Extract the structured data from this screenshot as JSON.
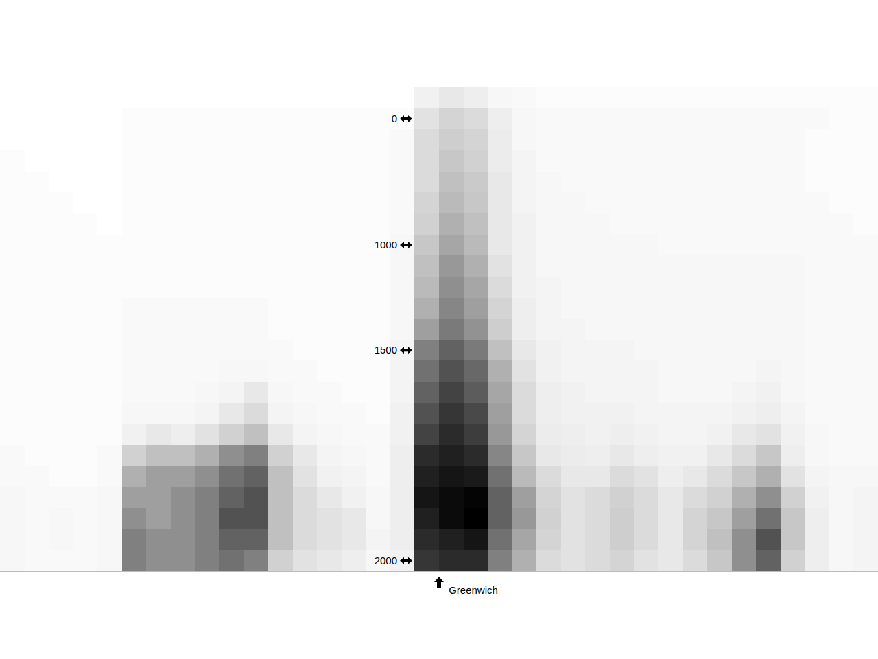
{
  "chart_data": {
    "type": "heatmap",
    "x": [
      -175,
      -165,
      -155,
      -145,
      -135,
      -125,
      -115,
      -105,
      -95,
      -85,
      -75,
      -65,
      -55,
      -45,
      -35,
      -25,
      -15,
      -5,
      5,
      15,
      25,
      35,
      45,
      55,
      65,
      75,
      85,
      95,
      105,
      115,
      125,
      135,
      145,
      155,
      165,
      175
    ],
    "categories": [
      null,
      "0",
      null,
      null,
      null,
      null,
      null,
      "1000",
      null,
      null,
      null,
      null,
      "1500",
      null,
      null,
      null,
      null,
      null,
      null,
      null,
      null,
      null,
      "2000"
    ],
    "cells": [
      [
        0,
        0,
        0,
        0,
        0,
        0,
        0,
        0,
        0,
        0,
        0,
        0,
        0,
        0,
        0,
        0,
        0,
        5,
        8,
        6,
        3,
        2,
        1,
        1,
        1,
        1,
        1,
        1,
        1,
        1,
        1,
        1,
        1,
        1,
        1,
        1
      ],
      [
        0,
        0,
        0,
        0,
        0,
        1,
        1,
        1,
        1,
        1,
        1,
        1,
        1,
        1,
        1,
        1,
        1,
        10,
        14,
        12,
        6,
        3,
        2,
        2,
        2,
        2,
        2,
        2,
        2,
        2,
        2,
        2,
        2,
        2,
        1,
        1
      ],
      [
        0,
        0,
        0,
        0,
        0,
        1,
        1,
        1,
        1,
        1,
        1,
        1,
        1,
        1,
        1,
        1,
        2,
        12,
        16,
        14,
        7,
        3,
        2,
        2,
        2,
        2,
        2,
        2,
        2,
        2,
        2,
        2,
        2,
        1,
        1,
        1
      ],
      [
        1,
        0,
        0,
        0,
        0,
        1,
        1,
        1,
        1,
        1,
        1,
        1,
        1,
        1,
        1,
        1,
        2,
        12,
        18,
        15,
        7,
        4,
        2,
        2,
        2,
        2,
        2,
        2,
        2,
        2,
        2,
        2,
        2,
        1,
        1,
        1
      ],
      [
        1,
        1,
        0,
        0,
        0,
        1,
        1,
        1,
        1,
        1,
        1,
        1,
        1,
        1,
        1,
        1,
        2,
        12,
        20,
        17,
        8,
        4,
        3,
        2,
        2,
        2,
        2,
        2,
        2,
        2,
        2,
        2,
        2,
        1,
        1,
        1
      ],
      [
        1,
        1,
        1,
        0,
        0,
        1,
        1,
        1,
        1,
        1,
        1,
        1,
        1,
        1,
        1,
        1,
        2,
        14,
        22,
        18,
        8,
        4,
        3,
        3,
        2,
        2,
        2,
        2,
        2,
        2,
        2,
        2,
        2,
        2,
        1,
        1
      ],
      [
        1,
        1,
        1,
        1,
        0,
        1,
        1,
        1,
        1,
        1,
        1,
        1,
        1,
        1,
        1,
        1,
        2,
        15,
        25,
        20,
        8,
        5,
        3,
        3,
        3,
        2,
        2,
        2,
        2,
        2,
        2,
        2,
        2,
        2,
        2,
        1
      ],
      [
        1,
        1,
        1,
        1,
        1,
        1,
        1,
        1,
        1,
        1,
        1,
        1,
        1,
        1,
        1,
        1,
        3,
        18,
        28,
        22,
        8,
        5,
        3,
        3,
        3,
        3,
        3,
        2,
        2,
        2,
        2,
        2,
        2,
        2,
        2,
        2
      ],
      [
        1,
        1,
        1,
        1,
        1,
        1,
        1,
        1,
        1,
        1,
        1,
        1,
        1,
        1,
        1,
        1,
        3,
        20,
        32,
        25,
        10,
        5,
        3,
        3,
        3,
        3,
        3,
        3,
        3,
        3,
        3,
        3,
        3,
        2,
        2,
        2
      ],
      [
        1,
        1,
        1,
        1,
        1,
        1,
        1,
        1,
        1,
        1,
        1,
        1,
        1,
        1,
        1,
        1,
        3,
        22,
        35,
        28,
        12,
        5,
        4,
        3,
        3,
        3,
        3,
        3,
        3,
        3,
        3,
        3,
        3,
        2,
        2,
        2
      ],
      [
        1,
        1,
        1,
        1,
        1,
        2,
        2,
        2,
        2,
        2,
        2,
        1,
        1,
        1,
        1,
        1,
        3,
        25,
        38,
        30,
        14,
        6,
        4,
        3,
        3,
        3,
        3,
        3,
        3,
        3,
        3,
        3,
        3,
        2,
        2,
        2
      ],
      [
        1,
        1,
        1,
        1,
        1,
        2,
        2,
        2,
        2,
        2,
        2,
        1,
        1,
        1,
        1,
        1,
        3,
        30,
        42,
        34,
        16,
        6,
        4,
        4,
        3,
        3,
        3,
        3,
        3,
        3,
        3,
        3,
        3,
        2,
        2,
        2
      ],
      [
        1,
        1,
        1,
        1,
        1,
        2,
        2,
        2,
        2,
        2,
        2,
        2,
        1,
        1,
        1,
        1,
        4,
        40,
        50,
        42,
        20,
        8,
        5,
        4,
        4,
        4,
        3,
        3,
        3,
        3,
        3,
        3,
        3,
        2,
        2,
        2
      ],
      [
        1,
        1,
        1,
        1,
        1,
        2,
        2,
        2,
        2,
        3,
        3,
        2,
        2,
        1,
        1,
        1,
        4,
        45,
        55,
        48,
        25,
        10,
        5,
        4,
        4,
        4,
        4,
        3,
        3,
        3,
        3,
        4,
        3,
        2,
        2,
        2
      ],
      [
        1,
        1,
        1,
        1,
        1,
        2,
        2,
        2,
        3,
        4,
        8,
        3,
        2,
        2,
        1,
        1,
        4,
        50,
        60,
        52,
        28,
        12,
        6,
        5,
        4,
        4,
        4,
        3,
        3,
        3,
        4,
        5,
        3,
        2,
        2,
        2
      ],
      [
        1,
        1,
        1,
        1,
        1,
        3,
        3,
        3,
        4,
        8,
        12,
        4,
        3,
        2,
        2,
        1,
        5,
        55,
        65,
        58,
        30,
        12,
        6,
        5,
        5,
        5,
        4,
        4,
        4,
        4,
        5,
        6,
        4,
        2,
        2,
        2
      ],
      [
        1,
        1,
        1,
        1,
        1,
        5,
        8,
        6,
        10,
        15,
        20,
        8,
        4,
        3,
        2,
        2,
        5,
        60,
        70,
        62,
        32,
        14,
        7,
        6,
        5,
        6,
        5,
        4,
        4,
        5,
        8,
        10,
        5,
        3,
        2,
        2
      ],
      [
        2,
        1,
        1,
        1,
        2,
        15,
        20,
        20,
        25,
        35,
        40,
        15,
        8,
        4,
        3,
        2,
        6,
        70,
        75,
        70,
        38,
        18,
        8,
        7,
        6,
        8,
        6,
        5,
        5,
        8,
        12,
        18,
        6,
        3,
        2,
        2
      ],
      [
        2,
        2,
        1,
        1,
        2,
        25,
        30,
        30,
        35,
        45,
        50,
        20,
        10,
        5,
        4,
        2,
        6,
        75,
        80,
        78,
        45,
        22,
        12,
        8,
        8,
        12,
        10,
        6,
        8,
        12,
        18,
        25,
        10,
        4,
        3,
        3
      ],
      [
        3,
        2,
        2,
        2,
        3,
        30,
        30,
        35,
        40,
        50,
        55,
        20,
        12,
        8,
        5,
        3,
        6,
        80,
        85,
        88,
        50,
        30,
        14,
        10,
        12,
        15,
        12,
        8,
        12,
        15,
        25,
        35,
        15,
        5,
        3,
        4
      ],
      [
        3,
        2,
        3,
        2,
        3,
        35,
        30,
        35,
        40,
        55,
        55,
        20,
        12,
        10,
        8,
        3,
        6,
        75,
        85,
        90,
        50,
        32,
        15,
        10,
        12,
        16,
        12,
        8,
        14,
        18,
        30,
        45,
        18,
        6,
        3,
        4
      ],
      [
        3,
        2,
        3,
        2,
        3,
        40,
        35,
        35,
        40,
        50,
        50,
        20,
        12,
        10,
        8,
        4,
        6,
        70,
        75,
        80,
        45,
        28,
        14,
        10,
        12,
        16,
        12,
        8,
        14,
        20,
        35,
        55,
        18,
        6,
        3,
        4
      ],
      [
        3,
        2,
        2,
        2,
        3,
        40,
        35,
        35,
        40,
        45,
        40,
        15,
        10,
        8,
        6,
        3,
        5,
        65,
        70,
        70,
        40,
        25,
        12,
        10,
        12,
        14,
        10,
        8,
        12,
        18,
        35,
        50,
        15,
        6,
        3,
        4
      ]
    ],
    "xlim": [
      -180,
      180
    ],
    "xticks": [
      {
        "value": 0,
        "label": "Greenwich"
      }
    ],
    "color": "#000000",
    "grid": false
  }
}
